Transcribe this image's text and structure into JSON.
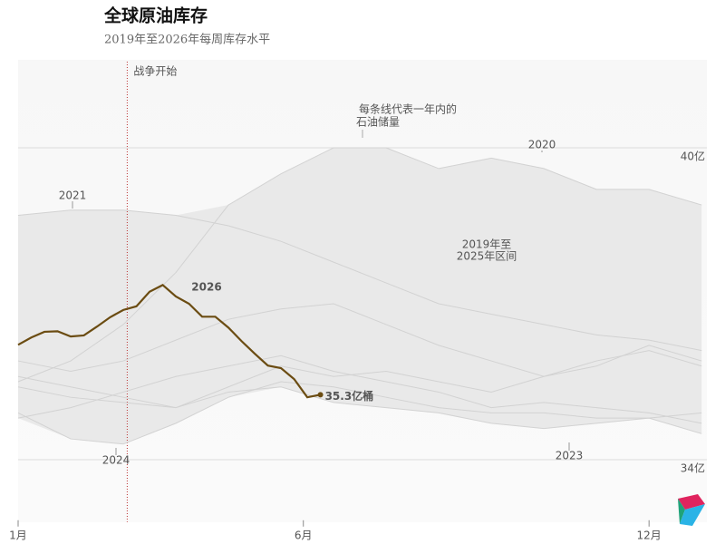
{
  "chart_data": {
    "type": "line",
    "title": "全球原油库存",
    "subtitle": "2019年至2026年每周库存水平",
    "annotations": [
      {
        "text": "战争开始",
        "x": 8.3
      },
      {
        "text": "每条线代表一年内的"
      },
      {
        "text": "石油储量"
      },
      {
        "text": "2019年至"
      },
      {
        "text": "2025年区间"
      }
    ],
    "xlim": [
      0,
      52.4
    ],
    "xticks": [
      {
        "value": 0,
        "label": "1月"
      },
      {
        "value": 21.7,
        "label": "6月"
      },
      {
        "value": 48,
        "label": "12月"
      }
    ],
    "ylim": [
      32.8,
      41.7
    ],
    "yticks": [
      {
        "value": 34,
        "label": "34亿"
      },
      {
        "value": 40,
        "label": "40亿"
      }
    ],
    "grid": true,
    "series": [
      {
        "color": "#d2d2d2",
        "x": [
          0,
          4,
          8,
          12,
          16,
          20,
          24,
          28,
          32,
          36,
          40,
          44,
          48,
          52
        ],
        "values": [
          35.9,
          35.7,
          35.9,
          36.3,
          36.7,
          36.9,
          37.0,
          36.6,
          36.2,
          35.9,
          35.6,
          35.8,
          36.2,
          35.9
        ]
      },
      {
        "name": "2020",
        "color": "#d2d2d2",
        "x": [
          0,
          4,
          8,
          12,
          16,
          20,
          24,
          28,
          32,
          36,
          40,
          44,
          48,
          52
        ],
        "values": [
          35.5,
          35.9,
          36.6,
          37.6,
          38.9,
          39.5,
          40.0,
          40.0,
          39.6,
          39.8,
          39.6,
          39.2,
          39.2,
          38.9
        ]
      },
      {
        "name": "2021",
        "color": "#d2d2d2",
        "x": [
          0,
          4,
          8,
          12,
          16,
          20,
          24,
          28,
          32,
          36,
          40,
          44,
          48,
          52
        ],
        "values": [
          38.7,
          38.8,
          38.8,
          38.7,
          38.5,
          38.2,
          37.8,
          37.4,
          37.0,
          36.8,
          36.6,
          36.4,
          36.3,
          36.1
        ]
      },
      {
        "color": "#d2d2d2",
        "x": [
          0,
          4,
          8,
          12,
          16,
          20,
          24,
          28,
          32,
          36,
          40,
          44,
          48,
          52
        ],
        "values": [
          34.8,
          35.0,
          35.3,
          35.6,
          35.8,
          36.0,
          35.7,
          35.5,
          35.3,
          35.0,
          35.1,
          35.0,
          34.9,
          34.7
        ]
      },
      {
        "name": "2023",
        "color": "#d2d2d2",
        "x": [
          0,
          4,
          8,
          12,
          16,
          20,
          24,
          28,
          32,
          36,
          40,
          44,
          48,
          52
        ],
        "values": [
          35.6,
          35.4,
          35.2,
          35.0,
          35.3,
          35.4,
          35.1,
          35.0,
          34.9,
          34.7,
          34.6,
          34.7,
          34.8,
          34.5
        ]
      },
      {
        "name": "2024",
        "color": "#d2d2d2",
        "x": [
          0,
          4,
          8,
          12,
          16,
          20,
          24,
          28,
          32,
          36,
          40,
          44,
          48,
          52
        ],
        "values": [
          34.9,
          34.4,
          34.3,
          34.7,
          35.2,
          35.5,
          35.4,
          35.2,
          35.0,
          34.9,
          34.9,
          34.8,
          34.8,
          34.9
        ]
      },
      {
        "color": "#d2d2d2",
        "x": [
          0,
          4,
          8,
          12,
          16,
          20,
          24,
          28,
          32,
          36,
          40,
          44,
          48,
          52
        ],
        "values": [
          35.4,
          35.2,
          35.1,
          35.0,
          35.4,
          35.8,
          35.6,
          35.7,
          35.5,
          35.3,
          35.6,
          35.9,
          36.1,
          35.8
        ]
      },
      {
        "name": "2026",
        "color": "#6b4c12",
        "x": [
          0,
          1,
          2,
          3,
          4,
          5,
          6,
          7,
          8,
          9,
          10,
          11,
          12,
          13,
          14,
          15,
          16,
          17,
          18,
          19,
          20,
          21,
          22,
          23
        ],
        "values": [
          36.21,
          36.35,
          36.46,
          36.47,
          36.37,
          36.39,
          36.56,
          36.74,
          36.88,
          36.95,
          37.23,
          37.36,
          37.14,
          37.0,
          36.75,
          36.75,
          36.54,
          36.28,
          36.04,
          35.81,
          35.76,
          35.55,
          35.2,
          35.25
        ],
        "value_labels": [
          null,
          null,
          null,
          null,
          null,
          null,
          null,
          null,
          null,
          null,
          null,
          null,
          null,
          null,
          null,
          null,
          null,
          null,
          null,
          null,
          null,
          null,
          null,
          "35.3亿桶"
        ]
      }
    ]
  }
}
